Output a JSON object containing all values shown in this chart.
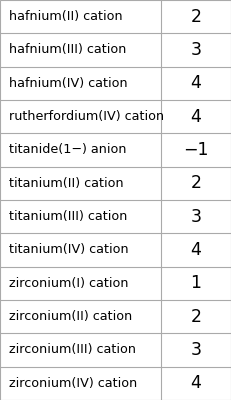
{
  "rows": [
    {
      "label": "hafnium(II) cation",
      "value": "2"
    },
    {
      "label": "hafnium(III) cation",
      "value": "3"
    },
    {
      "label": "hafnium(IV) cation",
      "value": "4"
    },
    {
      "label": "rutherfordium(IV) cation",
      "value": "4"
    },
    {
      "label": "titanide(1−) anion",
      "value": "−1"
    },
    {
      "label": "titanium(II) cation",
      "value": "2"
    },
    {
      "label": "titanium(III) cation",
      "value": "3"
    },
    {
      "label": "titanium(IV) cation",
      "value": "4"
    },
    {
      "label": "zirconium(I) cation",
      "value": "1"
    },
    {
      "label": "zirconium(II) cation",
      "value": "2"
    },
    {
      "label": "zirconium(III) cation",
      "value": "3"
    },
    {
      "label": "zirconium(IV) cation",
      "value": "4"
    }
  ],
  "bg_color": "#ffffff",
  "border_color": "#aaaaaa",
  "text_color": "#000000",
  "label_font_size": 9.2,
  "value_font_size": 12.5,
  "col_split": 0.695,
  "fig_width": 2.31,
  "fig_height": 4.0,
  "dpi": 100
}
